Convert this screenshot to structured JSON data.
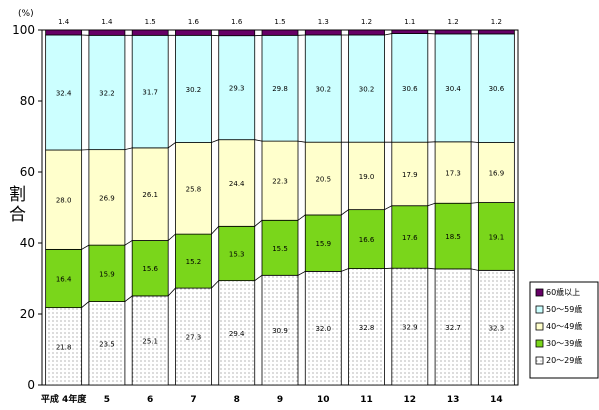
{
  "chart_data": {
    "type": "bar",
    "stacked": true,
    "percent": true,
    "title": "",
    "xlabel": "",
    "ylabel": "割合",
    "y_unit": "(%)",
    "ylim": [
      0,
      100
    ],
    "yticks": [
      0,
      20,
      40,
      60,
      80,
      100
    ],
    "categories": [
      "平成 4年度",
      "5",
      "6",
      "7",
      "8",
      "9",
      "10",
      "11",
      "12",
      "13",
      "14"
    ],
    "series": [
      {
        "name": "20～29歳",
        "color": "#ffffff",
        "pattern": "dots",
        "values": [
          21.8,
          23.5,
          25.1,
          27.3,
          29.4,
          30.9,
          32.0,
          32.8,
          32.9,
          32.7,
          32.3
        ],
        "labels": [
          "21.8",
          "23.5",
          "25.1",
          "27.3",
          "29.4",
          "30.9",
          "32.0",
          "32.8",
          "32.9",
          "32.7",
          "32.3"
        ]
      },
      {
        "name": "30～39歳",
        "color": "#7ad61b",
        "values": [
          16.4,
          15.9,
          15.6,
          15.2,
          15.3,
          15.5,
          15.9,
          16.6,
          17.6,
          18.5,
          19.1
        ],
        "labels": [
          "16.4",
          "15.9",
          "15.6",
          "15.2",
          "15.3",
          "15.5",
          "15.9",
          "16.6",
          "17.6",
          "18.5",
          "19.1"
        ]
      },
      {
        "name": "40～49歳",
        "color": "#ffffcc",
        "values": [
          28.0,
          26.9,
          26.1,
          25.8,
          24.4,
          22.3,
          20.5,
          19.0,
          17.9,
          17.3,
          16.9
        ],
        "labels": [
          "28.0",
          "26.9",
          "26.1",
          "25.8",
          "24.4",
          "22.3",
          "20.5",
          "19.0",
          "17.9",
          "17.3",
          "16.9"
        ]
      },
      {
        "name": "50～59歳",
        "color": "#ccffff",
        "values": [
          32.4,
          32.2,
          31.7,
          30.2,
          29.3,
          29.8,
          30.2,
          30.2,
          30.6,
          30.4,
          30.6
        ],
        "labels": [
          "32.4",
          "32.2",
          "31.7",
          "30.2",
          "29.3",
          "29.8",
          "30.2",
          "30.2",
          "30.6",
          "30.4",
          "30.6"
        ]
      },
      {
        "name": "60歳以上",
        "color": "#660066",
        "values": [
          1.4,
          1.4,
          1.5,
          1.6,
          1.6,
          1.5,
          1.3,
          1.2,
          1.1,
          1.2,
          1.2
        ],
        "labels": [
          "1.4",
          "1.4",
          "1.5",
          "1.6",
          "1.6",
          "1.5",
          "1.3",
          "1.2",
          "1.1",
          "1.2",
          "1.2"
        ]
      }
    ],
    "legend": {
      "placement": "right",
      "order": [
        "60歳以上",
        "50～59歳",
        "40～49歳",
        "30～39歳",
        "20～29歳"
      ]
    },
    "grid": false,
    "connector_lines": true
  }
}
